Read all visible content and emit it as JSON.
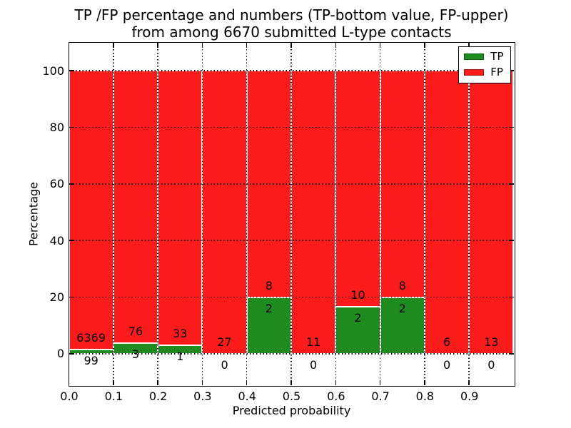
{
  "figure": {
    "title_line1": "TP /FP percentage and numbers (TP-bottom value, FP-upper)",
    "title_line2": "from among 6670 submitted L-type contacts"
  },
  "chart_data": {
    "type": "bar",
    "stacked": true,
    "title": "TP /FP percentage and numbers (TP-bottom value, FP-upper) from among 6670 submitted L-type contacts",
    "xlabel": "Predicted probability",
    "ylabel": "Percentage",
    "xlim": [
      0.0,
      1.0
    ],
    "ylim": [
      -11,
      110
    ],
    "xticks": [
      "0.0",
      "0.1",
      "0.2",
      "0.3",
      "0.4",
      "0.5",
      "0.6",
      "0.7",
      "0.8",
      "0.9"
    ],
    "yticks": [
      0,
      20,
      40,
      60,
      80,
      100
    ],
    "grid": true,
    "grid_style": "dotted",
    "legend_position": "upper right",
    "bin_width": 0.1,
    "categories": [
      "0.0-0.1",
      "0.1-0.2",
      "0.2-0.3",
      "0.3-0.4",
      "0.4-0.5",
      "0.5-0.6",
      "0.6-0.7",
      "0.7-0.8",
      "0.8-0.9",
      "0.9-1.0"
    ],
    "series": [
      {
        "name": "TP",
        "color": "#1e8b1e",
        "counts": [
          99,
          3,
          1,
          0,
          2,
          0,
          2,
          2,
          0,
          0
        ]
      },
      {
        "name": "FP",
        "color": "#fb1b1b",
        "counts": [
          6369,
          76,
          33,
          27,
          8,
          11,
          10,
          8,
          6,
          13
        ]
      }
    ],
    "tp_percent": [
      1.53,
      3.8,
      2.94,
      0,
      20,
      0,
      16.67,
      20,
      0,
      0
    ],
    "bar_edge_color": "#ffffff",
    "axis_color": "#000000"
  }
}
